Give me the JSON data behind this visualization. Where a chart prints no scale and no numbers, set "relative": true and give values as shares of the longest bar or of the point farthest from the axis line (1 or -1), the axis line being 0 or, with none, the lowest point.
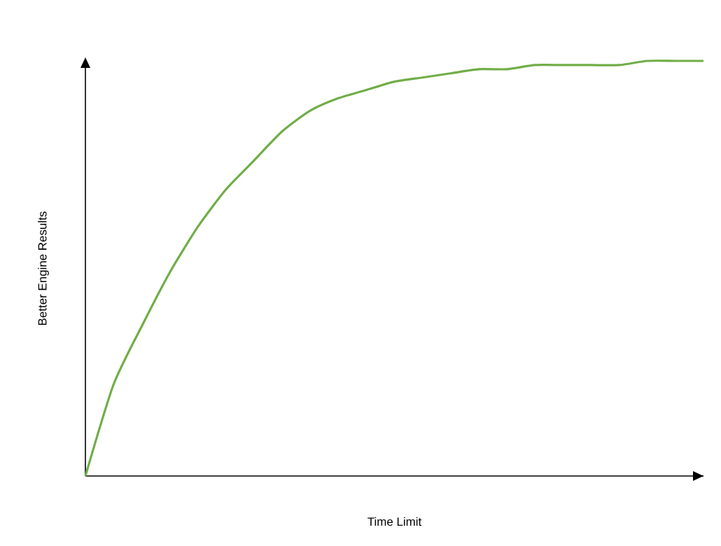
{
  "chart_data": {
    "type": "line",
    "relative": true,
    "xlabel": "Time Limit",
    "ylabel": "Better Engine Results",
    "color": "#70ad47",
    "marker": "none",
    "line_style": "solid",
    "categories": [
      null,
      null,
      null,
      null,
      null,
      null,
      null,
      null,
      null,
      null,
      null,
      null,
      null,
      null,
      null,
      null,
      null,
      null,
      null,
      null,
      null,
      null,
      null
    ],
    "values": [
      0,
      0.22,
      0.36,
      0.49,
      0.6,
      0.69,
      0.76,
      0.83,
      0.88,
      0.91,
      0.93,
      0.95,
      0.96,
      0.97,
      0.98,
      0.98,
      0.99,
      0.99,
      0.99,
      0.99,
      1.0,
      1.0,
      1.0
    ]
  }
}
